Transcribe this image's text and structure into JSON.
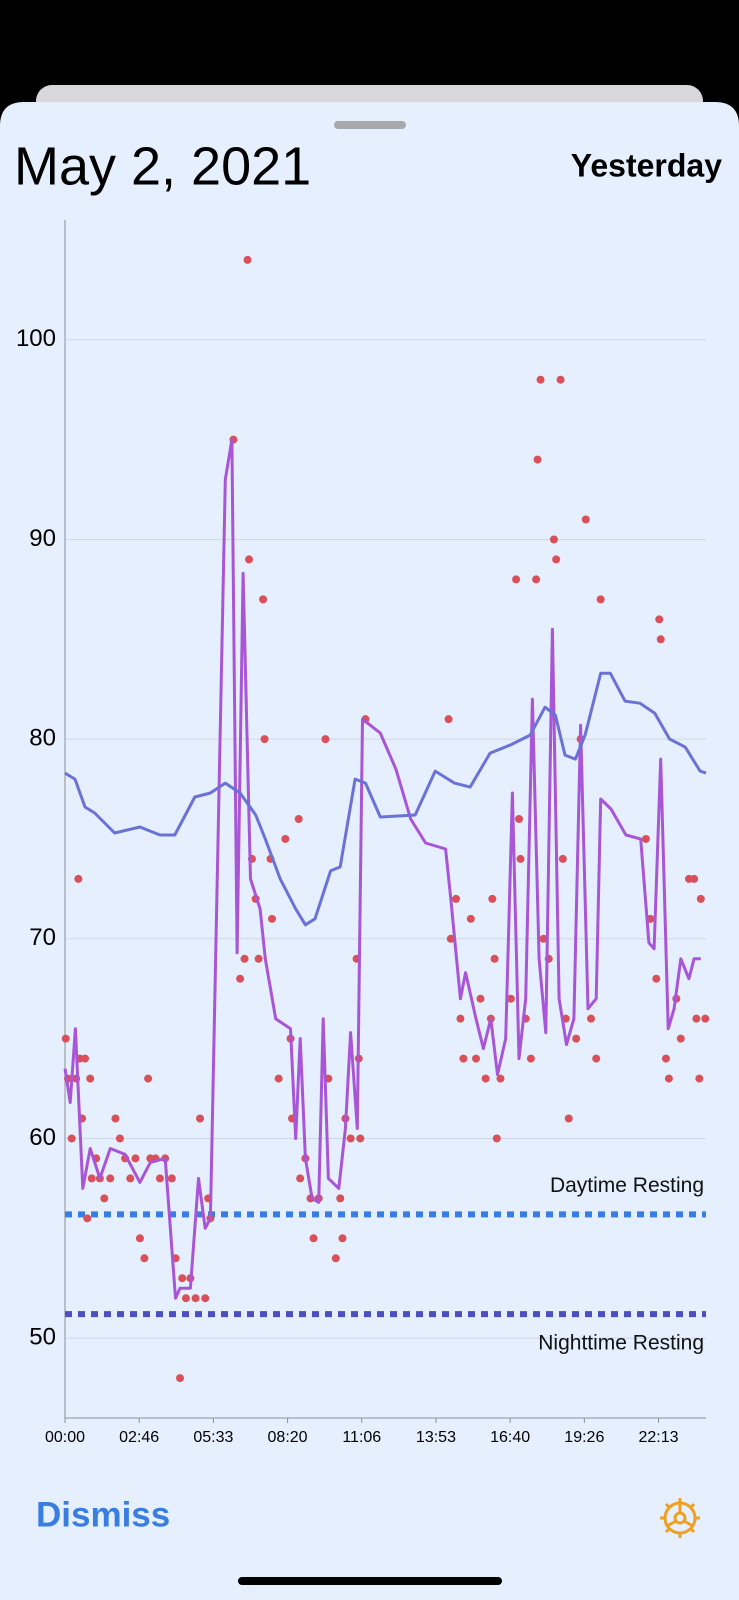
{
  "header": {
    "title": "May 2, 2021",
    "day": "Yesterday"
  },
  "footer": {
    "dismiss": "Dismiss"
  },
  "chart_data": {
    "type": "line",
    "xlim": [
      0,
      86400
    ],
    "ylim": [
      46,
      106
    ],
    "yticks": [
      50,
      60,
      70,
      80,
      90,
      100
    ],
    "xticks": [
      {
        "value": 0,
        "label": "00:00"
      },
      {
        "value": 10000,
        "label": "02:46"
      },
      {
        "value": 20000,
        "label": "05:33"
      },
      {
        "value": 30000,
        "label": "08:20"
      },
      {
        "value": 40000,
        "label": "11:06"
      },
      {
        "value": 50000,
        "label": "13:53"
      },
      {
        "value": 60000,
        "label": "16:40"
      },
      {
        "value": 70000,
        "label": "19:26"
      },
      {
        "value": 80000,
        "label": "22:13"
      }
    ],
    "grid": true,
    "reference_lines": [
      {
        "name": "Daytime Resting",
        "value": 56.2,
        "color": "#3a7de0"
      },
      {
        "name": "Nighttime Resting",
        "value": 51.2,
        "color": "#4b4fc0"
      }
    ],
    "series": [
      {
        "type": "scatter",
        "color": "#d9505a",
        "x": [
          100,
          400,
          900,
          1500,
          1800,
          2000,
          2300,
          2700,
          3000,
          3400,
          3600,
          4200,
          4700,
          5300,
          6100,
          6800,
          7400,
          8100,
          8800,
          9500,
          10100,
          10700,
          11200,
          11500,
          12200,
          12800,
          13500,
          14400,
          14900,
          15500,
          15800,
          16300,
          16900,
          17600,
          18200,
          18900,
          19300,
          19600,
          22700,
          23600,
          24200,
          24600,
          24800,
          25200,
          25700,
          26100,
          26700,
          26900,
          27700,
          27900,
          28800,
          29700,
          30400,
          30600,
          31500,
          31700,
          32400,
          33100,
          33500,
          34200,
          35100,
          35500,
          36500,
          37100,
          37400,
          37800,
          38500,
          39300,
          39600,
          39800,
          40500,
          51700,
          52000,
          52700,
          53300,
          53700,
          54700,
          55400,
          56000,
          56700,
          57400,
          57600,
          57900,
          58200,
          58700,
          60100,
          60800,
          61200,
          61400,
          62100,
          62800,
          63500,
          63700,
          64100,
          64500,
          65200,
          65900,
          66200,
          66800,
          67100,
          67500,
          67900,
          68900,
          69500,
          70200,
          70900,
          71600,
          72200,
          78300,
          78900,
          79700,
          80100,
          80300,
          81000,
          81400,
          82400,
          83000,
          84100,
          84800,
          85100,
          85500,
          85700,
          86300
        ],
        "values": [
          65,
          63,
          60,
          63,
          73,
          64,
          61,
          64,
          56,
          63,
          58,
          59,
          58,
          57,
          58,
          61,
          60,
          59,
          58,
          59,
          55,
          54,
          63,
          59,
          59,
          58,
          59,
          58,
          54,
          48,
          53,
          52,
          53,
          52,
          61,
          52,
          57,
          56,
          95,
          68,
          69,
          104,
          89,
          74,
          72,
          69,
          87,
          80,
          74,
          71,
          63,
          75,
          65,
          61,
          76,
          58,
          59,
          57,
          55,
          57,
          80,
          63,
          54,
          57,
          55,
          61,
          60,
          69,
          64,
          60,
          81,
          81,
          70,
          72,
          66,
          64,
          71,
          64,
          67,
          63,
          66,
          72,
          69,
          60,
          63,
          67,
          88,
          76,
          74,
          66,
          64,
          88,
          94,
          98,
          70,
          69,
          90,
          89,
          98,
          74,
          66,
          61,
          65,
          80,
          91,
          66,
          64,
          87,
          75,
          71,
          68,
          86,
          85,
          64,
          63,
          67,
          65,
          73,
          73,
          66,
          63,
          72,
          66
        ]
      },
      {
        "type": "line",
        "color": "#a855d6",
        "x": [
          0,
          700,
          1400,
          2400,
          3400,
          4700,
          6100,
          8100,
          10100,
          11500,
          13500,
          14900,
          15500,
          16900,
          18000,
          18900,
          19600,
          21600,
          22500,
          23200,
          24000,
          25000,
          26300,
          27000,
          28400,
          30400,
          31100,
          31700,
          32400,
          33300,
          34200,
          34800,
          35500,
          36900,
          37800,
          38500,
          39400,
          40100,
          42500,
          44600,
          46600,
          48600,
          51300,
          52000,
          53300,
          54000,
          55400,
          56400,
          57400,
          58300,
          59400,
          60300,
          61200,
          62100,
          63000,
          63900,
          64800,
          65700,
          66600,
          67600,
          68600,
          69500,
          70500,
          71600,
          72200,
          73600,
          75600,
          77600,
          78700,
          79400,
          80300,
          81300,
          82100,
          83000,
          84100,
          84800,
          85700
        ],
        "values": [
          63.5,
          61.8,
          65.5,
          57.5,
          59.5,
          58,
          59.5,
          59.2,
          57.8,
          58.8,
          59,
          52,
          52.5,
          52.5,
          58,
          55.5,
          56,
          93,
          95,
          69.3,
          88.3,
          73,
          71.5,
          69,
          66,
          65.5,
          60,
          65,
          59,
          57,
          56.8,
          66,
          58,
          57.5,
          60.5,
          65.3,
          60.5,
          81,
          80.3,
          78.5,
          76,
          74.8,
          74.5,
          72,
          67,
          68.3,
          66,
          64.5,
          66,
          63.2,
          65,
          77.3,
          64,
          67,
          82,
          69,
          65.3,
          85.5,
          67,
          64.7,
          66,
          80.7,
          66.5,
          67,
          77,
          76.5,
          75.2,
          75,
          69.8,
          69.5,
          79,
          65.5,
          66.5,
          69,
          68,
          69,
          69
        ]
      },
      {
        "type": "line",
        "color": "#6b72d6",
        "x": [
          0,
          1350,
          2700,
          4000,
          6700,
          10100,
          12800,
          14800,
          17500,
          19600,
          21600,
          23600,
          25700,
          27000,
          29000,
          31100,
          32400,
          33700,
          35800,
          37100,
          39100,
          40500,
          42500,
          47200,
          49900,
          52500,
          54600,
          57300,
          60000,
          62700,
          64700,
          66100,
          67400,
          68800,
          70100,
          72200,
          73500,
          75500,
          77500,
          79500,
          81500,
          83600,
          85600,
          86400
        ],
        "values": [
          78.3,
          78,
          76.6,
          76.3,
          75.3,
          75.6,
          75.2,
          75.2,
          77.1,
          77.3,
          77.8,
          77.3,
          76.2,
          75,
          73,
          71.5,
          70.7,
          71,
          73.4,
          73.6,
          78,
          77.8,
          76.1,
          76.2,
          78.4,
          77.8,
          77.6,
          79.3,
          79.7,
          80.2,
          81.6,
          81.2,
          79.2,
          79,
          80.2,
          83.3,
          83.3,
          81.9,
          81.8,
          81.3,
          80,
          79.6,
          78.4,
          78.3
        ]
      }
    ]
  }
}
